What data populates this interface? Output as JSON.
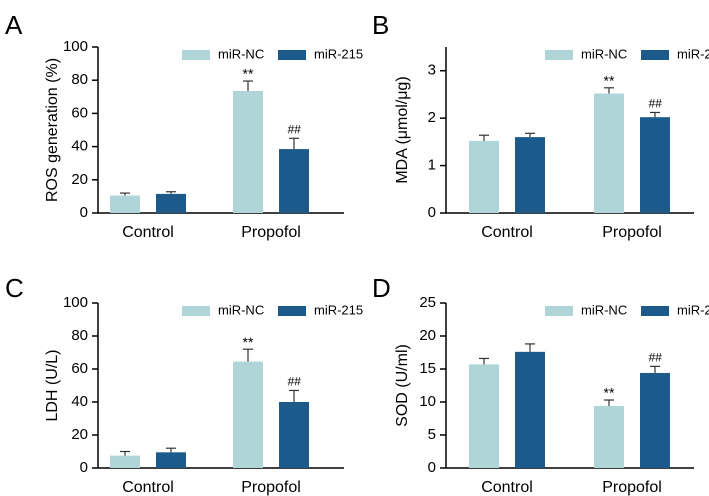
{
  "figure": {
    "legend_series": [
      {
        "name": "miR-NC",
        "color": "#b0d5d8"
      },
      {
        "name": "miR-215",
        "color": "#1b5a8a"
      }
    ]
  },
  "chart_data": [
    {
      "type": "bar",
      "panel": "A",
      "ylabel": "ROS generation (%)",
      "categories": [
        "Control",
        "Propofol"
      ],
      "ylim": [
        0,
        100
      ],
      "yticks": [
        0,
        20,
        40,
        60,
        80,
        100
      ],
      "series": [
        {
          "name": "miR-NC",
          "values": [
            10.5,
            73.5
          ],
          "errors": [
            1.5,
            6.0
          ],
          "annotations": [
            "",
            "**"
          ]
        },
        {
          "name": "miR-215",
          "values": [
            11.5,
            38.5
          ],
          "errors": [
            1.3,
            6.5
          ],
          "annotations": [
            "",
            "##"
          ]
        }
      ]
    },
    {
      "type": "bar",
      "panel": "B",
      "ylabel": "MDA (μmol/μg)",
      "categories": [
        "Control",
        "Propofol"
      ],
      "ylim": [
        0,
        3.5
      ],
      "yticks": [
        0,
        1,
        2,
        3
      ],
      "series": [
        {
          "name": "miR-NC",
          "values": [
            1.52,
            2.52
          ],
          "errors": [
            0.12,
            0.12
          ],
          "annotations": [
            "",
            "**"
          ]
        },
        {
          "name": "miR-215",
          "values": [
            1.6,
            2.02
          ],
          "errors": [
            0.08,
            0.1
          ],
          "annotations": [
            "",
            "##"
          ]
        }
      ]
    },
    {
      "type": "bar",
      "panel": "C",
      "ylabel": "LDH (U/L)",
      "categories": [
        "Control",
        "Propofol"
      ],
      "ylim": [
        0,
        100
      ],
      "yticks": [
        0,
        20,
        40,
        60,
        80,
        100
      ],
      "series": [
        {
          "name": "miR-NC",
          "values": [
            7.5,
            64.5
          ],
          "errors": [
            2.5,
            7.5
          ],
          "annotations": [
            "",
            "**"
          ]
        },
        {
          "name": "miR-215",
          "values": [
            9.5,
            40.0
          ],
          "errors": [
            2.5,
            7.0
          ],
          "annotations": [
            "",
            "##"
          ]
        }
      ]
    },
    {
      "type": "bar",
      "panel": "D",
      "ylabel": "SOD (U/ml)",
      "categories": [
        "Control",
        "Propofol"
      ],
      "ylim": [
        0,
        25
      ],
      "yticks": [
        0,
        5,
        10,
        15,
        20,
        25
      ],
      "series": [
        {
          "name": "miR-NC",
          "values": [
            15.7,
            9.4
          ],
          "errors": [
            0.9,
            0.9
          ],
          "annotations": [
            "",
            "**"
          ]
        },
        {
          "name": "miR-215",
          "values": [
            17.6,
            14.4
          ],
          "errors": [
            1.2,
            1.0
          ],
          "annotations": [
            "",
            "##"
          ]
        }
      ]
    }
  ]
}
